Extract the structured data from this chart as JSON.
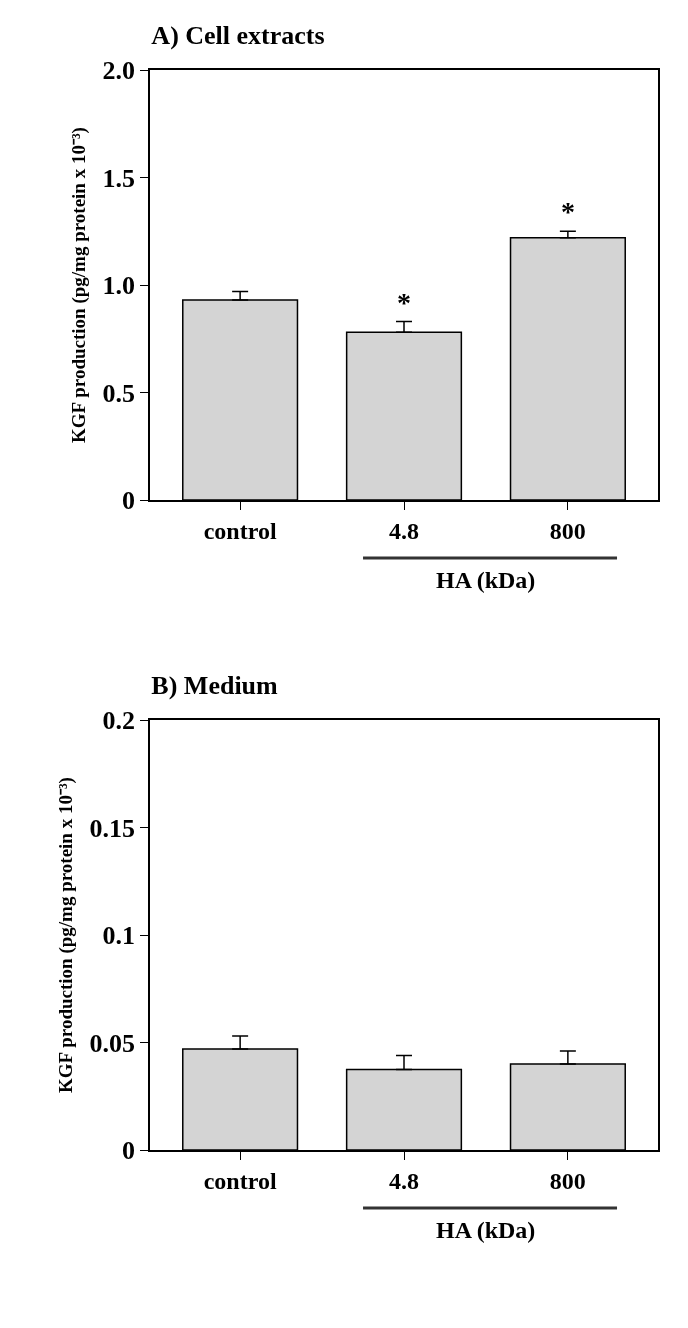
{
  "chart_data": [
    {
      "type": "bar",
      "title": "A) Cell extracts",
      "ylabel": "KGF production (pg/mg protein x 10⁻³)",
      "xlabel": "HA (kDa)",
      "categories": [
        "control",
        "4.8",
        "800"
      ],
      "values": [
        0.93,
        0.78,
        1.22
      ],
      "errors": [
        [
          0.93,
          0.97
        ],
        [
          0.78,
          0.83
        ],
        [
          1.22,
          1.25
        ]
      ],
      "color": "#d4d4d4",
      "ylim": [
        0,
        2.0
      ],
      "yticks": [
        0,
        0.5,
        {
          "value": 1,
          "label": "1.0"
        },
        1.5,
        {
          "value": 2,
          "label": "2.0"
        }
      ],
      "annotations": [
        {
          "text": "*",
          "x": "4.8",
          "y": 0.83
        },
        {
          "text": "*",
          "x": "800",
          "y": 1.25
        }
      ]
    },
    {
      "type": "bar",
      "title": "B) Medium",
      "ylabel": "KGF production (pg/mg protein x 10⁻³)",
      "xlabel": "HA (kDa)",
      "categories": [
        "control",
        "4.8",
        "800"
      ],
      "values": [
        0.047,
        0.0375,
        0.04
      ],
      "errors": [
        [
          0.047,
          0.053
        ],
        [
          0.0375,
          0.044
        ],
        [
          0.04,
          0.046
        ]
      ],
      "color": "#d4d4d4",
      "ylim": [
        0,
        0.2
      ],
      "yticks": [
        0,
        0.05,
        0.1,
        0.15,
        0.2
      ]
    }
  ]
}
